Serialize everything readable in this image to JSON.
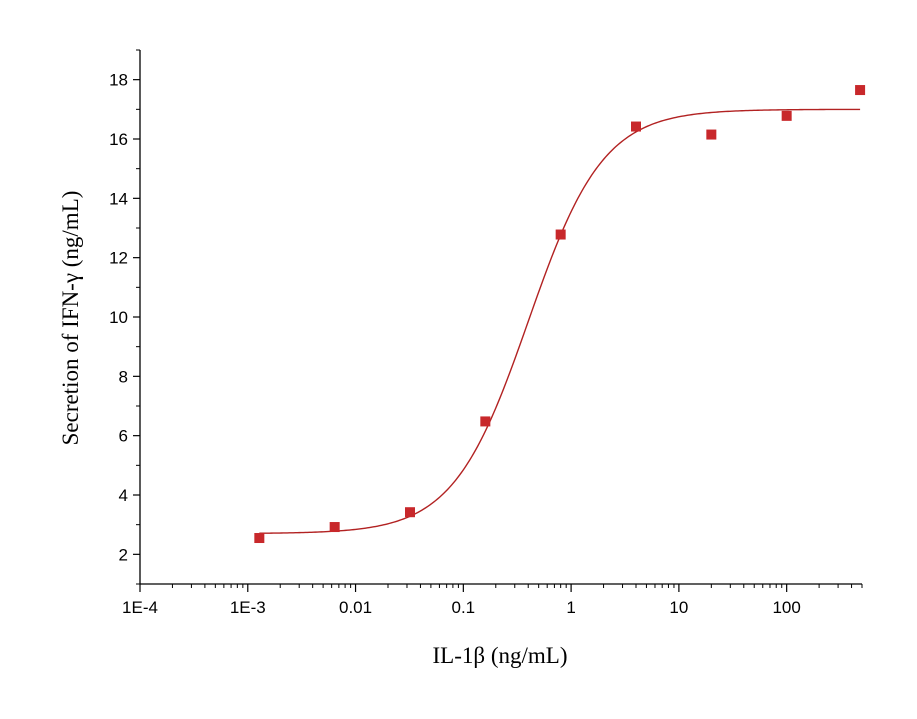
{
  "chart_data": {
    "type": "scatter",
    "xlabel": "IL-1β  (ng/mL)",
    "ylabel": "Secretion of IFN-γ  (ng/mL)",
    "x_scale": "log",
    "xlim": [
      0.0001,
      500
    ],
    "ylim": [
      1,
      19
    ],
    "x_ticks": [
      {
        "value": 0.0001,
        "label": "1E-4"
      },
      {
        "value": 0.001,
        "label": "1E-3"
      },
      {
        "value": 0.01,
        "label": "0.01"
      },
      {
        "value": 0.1,
        "label": "0.1"
      },
      {
        "value": 1,
        "label": "1"
      },
      {
        "value": 10,
        "label": "10"
      },
      {
        "value": 100,
        "label": "100"
      }
    ],
    "y_ticks": [
      {
        "value": 2,
        "label": "2"
      },
      {
        "value": 4,
        "label": "4"
      },
      {
        "value": 6,
        "label": "6"
      },
      {
        "value": 8,
        "label": "8"
      },
      {
        "value": 10,
        "label": "10"
      },
      {
        "value": 12,
        "label": "12"
      },
      {
        "value": 14,
        "label": "14"
      },
      {
        "value": 16,
        "label": "16"
      },
      {
        "value": 18,
        "label": "18"
      }
    ],
    "grid": false,
    "points": [
      {
        "x": 0.00128,
        "y": 2.55
      },
      {
        "x": 0.0064,
        "y": 2.92
      },
      {
        "x": 0.032,
        "y": 3.42
      },
      {
        "x": 0.16,
        "y": 6.48
      },
      {
        "x": 0.8,
        "y": 12.78
      },
      {
        "x": 4,
        "y": 16.42
      },
      {
        "x": 20,
        "y": 16.15
      },
      {
        "x": 100,
        "y": 16.78
      },
      {
        "x": 480,
        "y": 17.65
      }
    ],
    "fit": {
      "bottom": 2.7,
      "top": 17.0,
      "ec50": 0.4,
      "hill": 1.25
    },
    "colors": {
      "marker": "#c8282b",
      "curve": "#b22222",
      "axis": "#000000"
    }
  }
}
